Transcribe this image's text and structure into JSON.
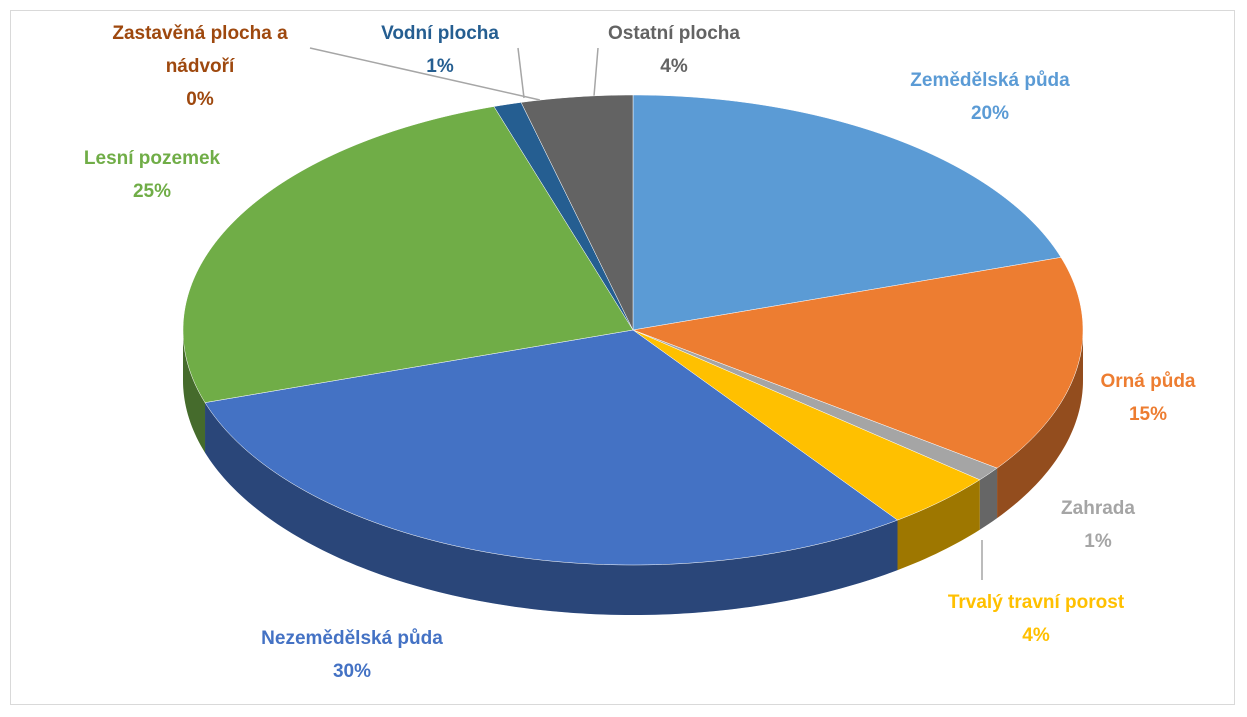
{
  "chart_data": {
    "type": "pie",
    "categories": [
      "Zemědělská půda",
      "Orná půda",
      "Zahrada",
      "Trvalý travní porost",
      "Nezemědělská půda",
      "Lesní pozemek",
      "Vodní plocha",
      "Zastavěná plocha a nádvoří",
      "Ostatní plocha"
    ],
    "values": [
      20,
      15,
      1,
      4,
      30,
      25,
      1,
      0,
      4
    ],
    "value_labels": [
      "20%",
      "15%",
      "1%",
      "4%",
      "30%",
      "25%",
      "1%",
      "0%",
      "4%"
    ],
    "colors": [
      "#5b9bd5",
      "#ed7d31",
      "#a5a5a5",
      "#ffc000",
      "#4472c4",
      "#70ad47",
      "#255e91",
      "#9e480e",
      "#636363"
    ]
  }
}
